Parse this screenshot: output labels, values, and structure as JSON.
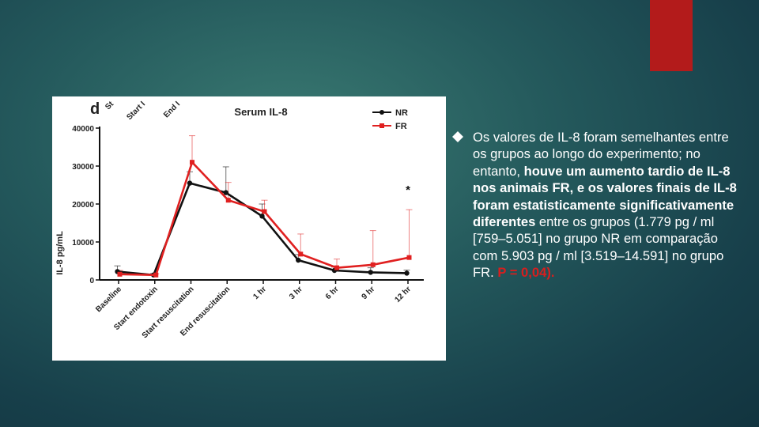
{
  "slide": {
    "accent_color": "#b31b1b",
    "text_segments": [
      {
        "text": "Os valores de IL-8 foram semelhantes entre os grupos ao longo do experimento; no entanto, ",
        "style": "normal"
      },
      {
        "text": "houve um aumento tardio de IL-8 nos animais FR, e os valores finais de IL-8 foram estatisticamente significativamente diferentes",
        "style": "bold"
      },
      {
        "text": " entre os grupos (1.779 pg / ml [759–5.051] no grupo NR em comparação com 5.903 pg / ml [3.519–14.591] no grupo FR. ",
        "style": "normal"
      },
      {
        "text": "P = 0,04).",
        "style": "red"
      }
    ]
  },
  "chart_data": {
    "type": "line",
    "panel_label": "d",
    "title": "Serum IL-8",
    "ylabel": "IL-8 pg/mL",
    "ylim": [
      0,
      40000
    ],
    "yticks": [
      0,
      10000,
      20000,
      30000,
      40000
    ],
    "categories": [
      "Baseline",
      "Start endotoxin",
      "Start resuscitation",
      "End resuscitation",
      "1 hr",
      "3 hr",
      "6 hr",
      "9 hr",
      "12 hr"
    ],
    "top_labels": [
      "St",
      "Start I",
      "End I"
    ],
    "legend_position": "top-right",
    "annotation": {
      "text": "*",
      "category": "12 hr",
      "y": 24000
    },
    "series": [
      {
        "name": "NR",
        "color": "#111111",
        "values": [
          2200,
          1300,
          25500,
          23000,
          16800,
          5200,
          2500,
          2000,
          1779
        ],
        "err": [
          1500,
          400,
          3000,
          6800,
          3200,
          1500,
          900,
          1200,
          800
        ]
      },
      {
        "name": "FR",
        "color": "#e02020",
        "values": [
          1500,
          1300,
          31000,
          21000,
          18000,
          6800,
          3200,
          4000,
          5903
        ],
        "err": [
          1000,
          300,
          7000,
          4700,
          3000,
          5300,
          2300,
          9000,
          12600
        ]
      }
    ]
  }
}
